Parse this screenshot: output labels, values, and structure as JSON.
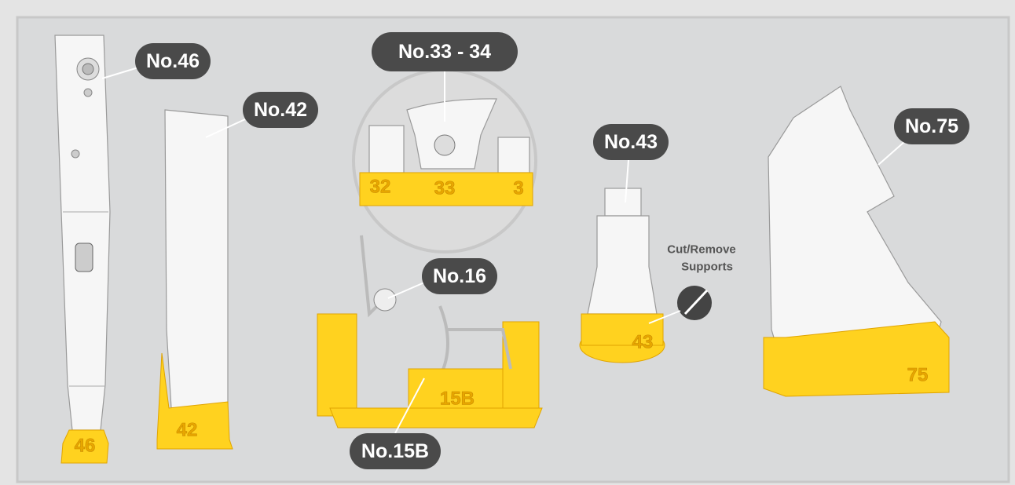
{
  "callouts": [
    "No.46",
    "No.42",
    "No.33 - 34",
    "No.16",
    "No.15B",
    "No.43",
    "No.75"
  ],
  "cut_note": [
    "Cut/Remove",
    "Supports"
  ],
  "base_labels": [
    "46",
    "42",
    "32",
    "33",
    "3",
    "15B",
    "43",
    "75"
  ]
}
